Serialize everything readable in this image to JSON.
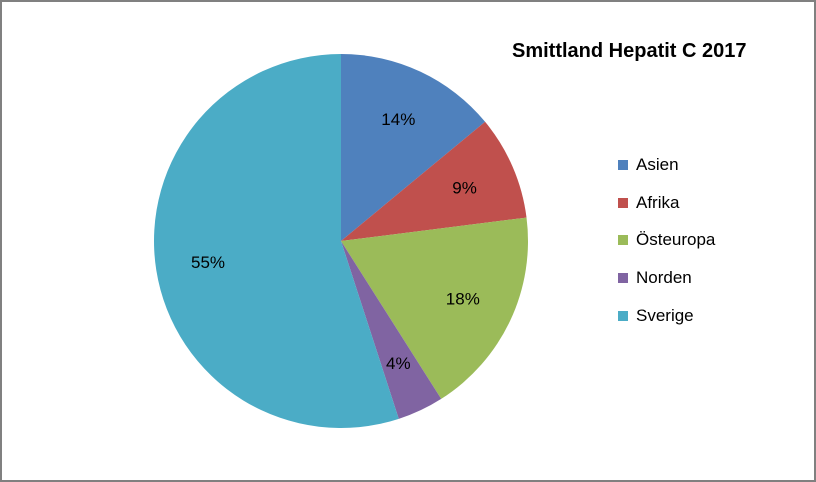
{
  "chart_data": {
    "type": "pie",
    "title": "Smittland Hepatit C 2017",
    "categories": [
      "Asien",
      "Afrika",
      "Östeuropa",
      "Norden",
      "Sverige"
    ],
    "values": [
      14,
      9,
      18,
      4,
      55
    ],
    "labels": [
      "14%",
      "9%",
      "18%",
      "4%",
      "55%"
    ],
    "colors": [
      "#4F81BD",
      "#C0504D",
      "#9BBB59",
      "#8064A2",
      "#4BACC6"
    ],
    "legend_position": "right"
  }
}
